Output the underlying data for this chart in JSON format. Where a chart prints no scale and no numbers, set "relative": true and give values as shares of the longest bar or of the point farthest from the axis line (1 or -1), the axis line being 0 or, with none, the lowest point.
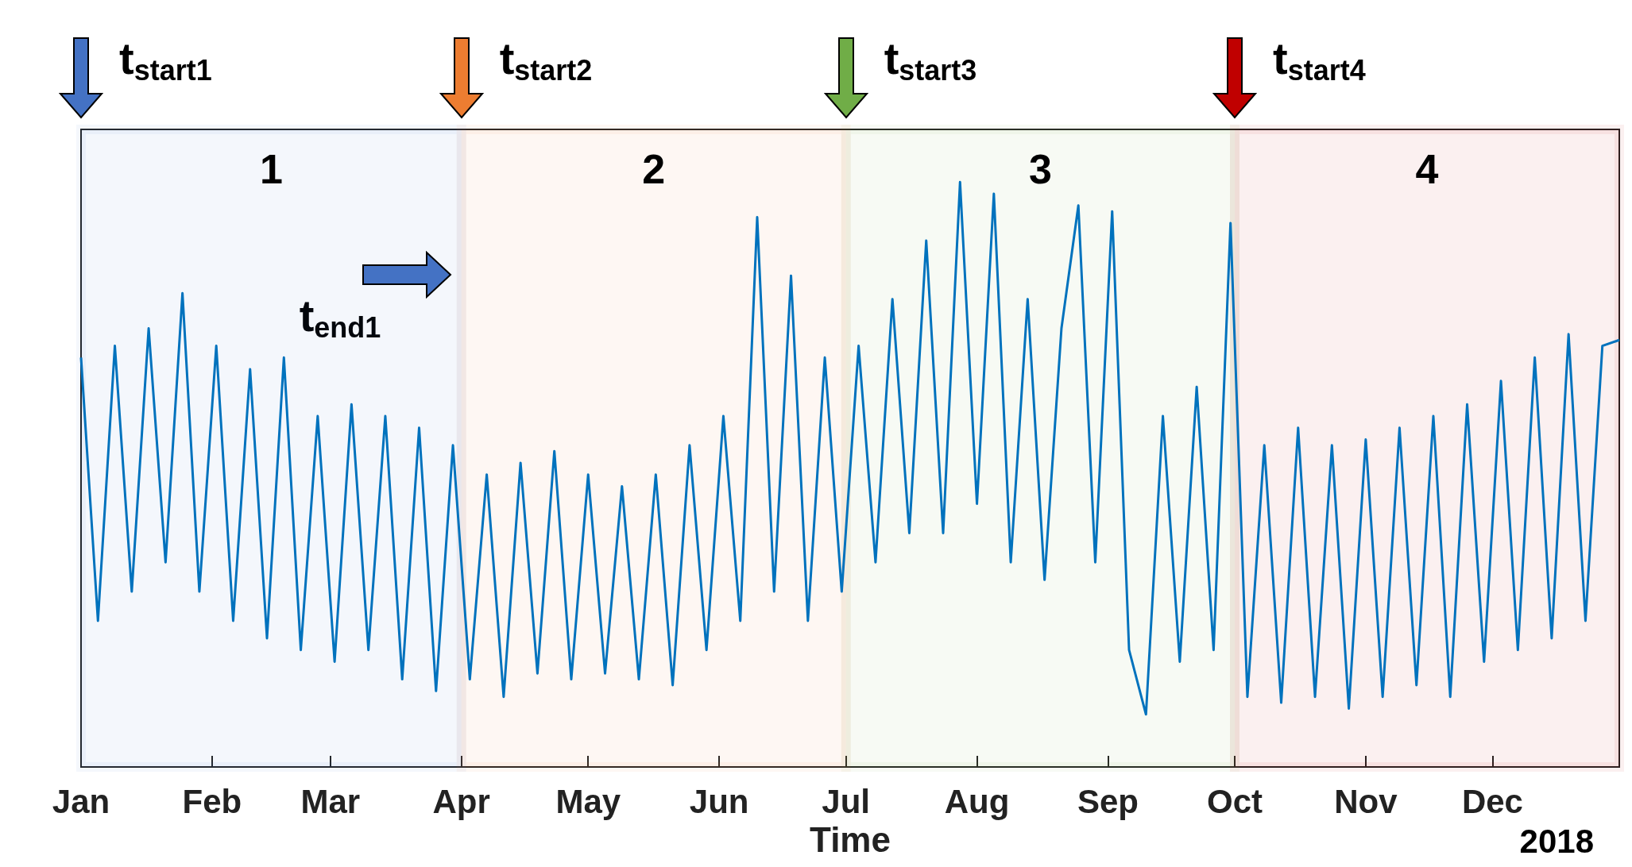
{
  "chart_data": {
    "type": "line",
    "relative": true,
    "xlabel": "Time",
    "grid": false,
    "marker": "none",
    "line_style": "solid",
    "xlim": [
      "2018-01-01",
      "2018-12-31"
    ],
    "xticks": [
      {
        "value": "2018-01-01",
        "label": "Jan"
      },
      {
        "value": "2018-02-01",
        "label": "Feb"
      },
      {
        "value": "2018-03-01",
        "label": "Mar"
      },
      {
        "value": "2018-04-01",
        "label": "Apr"
      },
      {
        "value": "2018-05-01",
        "label": "May"
      },
      {
        "value": "2018-06-01",
        "label": "Jun"
      },
      {
        "value": "2018-07-01",
        "label": "Jul"
      },
      {
        "value": "2018-08-01",
        "label": "Aug"
      },
      {
        "value": "2018-09-01",
        "label": "Sep"
      },
      {
        "value": "2018-10-01",
        "label": "Oct"
      },
      {
        "value": "2018-11-01",
        "label": "Nov"
      },
      {
        "value": "2018-12-01",
        "label": "Dec"
      }
    ],
    "x": [
      "2018-01-01",
      "2018-01-05",
      "2018-01-09",
      "2018-01-13",
      "2018-01-17",
      "2018-01-21",
      "2018-01-25",
      "2018-01-29",
      "2018-02-02",
      "2018-02-06",
      "2018-02-10",
      "2018-02-14",
      "2018-02-18",
      "2018-02-22",
      "2018-02-26",
      "2018-03-02",
      "2018-03-06",
      "2018-03-10",
      "2018-03-14",
      "2018-03-18",
      "2018-03-22",
      "2018-03-26",
      "2018-03-30",
      "2018-04-03",
      "2018-04-07",
      "2018-04-11",
      "2018-04-15",
      "2018-04-19",
      "2018-04-23",
      "2018-04-27",
      "2018-05-01",
      "2018-05-05",
      "2018-05-09",
      "2018-05-13",
      "2018-05-17",
      "2018-05-21",
      "2018-05-25",
      "2018-05-29",
      "2018-06-02",
      "2018-06-06",
      "2018-06-10",
      "2018-06-14",
      "2018-06-18",
      "2018-06-22",
      "2018-06-26",
      "2018-06-30",
      "2018-07-04",
      "2018-07-08",
      "2018-07-12",
      "2018-07-16",
      "2018-07-20",
      "2018-07-24",
      "2018-07-28",
      "2018-08-01",
      "2018-08-05",
      "2018-08-09",
      "2018-08-13",
      "2018-08-17",
      "2018-08-21",
      "2018-08-25",
      "2018-08-29",
      "2018-09-02",
      "2018-09-06",
      "2018-09-10",
      "2018-09-14",
      "2018-09-18",
      "2018-09-22",
      "2018-09-26",
      "2018-09-30",
      "2018-10-04",
      "2018-10-08",
      "2018-10-12",
      "2018-10-16",
      "2018-10-20",
      "2018-10-24",
      "2018-10-28",
      "2018-11-01",
      "2018-11-05",
      "2018-11-09",
      "2018-11-13",
      "2018-11-17",
      "2018-11-21",
      "2018-11-25",
      "2018-11-29",
      "2018-12-03",
      "2018-12-07",
      "2018-12-11",
      "2018-12-15",
      "2018-12-19",
      "2018-12-23",
      "2018-12-27",
      "2018-12-31"
    ],
    "series": [
      {
        "color": "#0072bd",
        "values": [
          0.7,
          0.25,
          0.72,
          0.3,
          0.75,
          0.35,
          0.81,
          0.3,
          0.72,
          0.25,
          0.68,
          0.22,
          0.7,
          0.2,
          0.6,
          0.18,
          0.62,
          0.2,
          0.6,
          0.15,
          0.58,
          0.13,
          0.55,
          0.15,
          0.5,
          0.12,
          0.52,
          0.16,
          0.54,
          0.15,
          0.5,
          0.16,
          0.48,
          0.15,
          0.5,
          0.14,
          0.55,
          0.2,
          0.6,
          0.25,
          0.94,
          0.3,
          0.84,
          0.25,
          0.7,
          0.3,
          0.72,
          0.35,
          0.8,
          0.4,
          0.9,
          0.4,
          1.0,
          0.45,
          0.98,
          0.35,
          0.8,
          0.32,
          0.75,
          0.96,
          0.35,
          0.95,
          0.2,
          0.09,
          0.6,
          0.18,
          0.65,
          0.2,
          0.93,
          0.12,
          0.55,
          0.11,
          0.58,
          0.12,
          0.55,
          0.1,
          0.56,
          0.12,
          0.58,
          0.14,
          0.6,
          0.12,
          0.62,
          0.18,
          0.66,
          0.2,
          0.7,
          0.22,
          0.74,
          0.25,
          0.72,
          0.73
        ]
      }
    ],
    "bands": [
      {
        "axis": "x",
        "from": "2018-01-01",
        "to": "2018-04-01",
        "label": "1",
        "color": "#4472c4"
      },
      {
        "axis": "x",
        "from": "2018-04-01",
        "to": "2018-07-01",
        "label": "2",
        "color": "#ed7d31"
      },
      {
        "axis": "x",
        "from": "2018-07-01",
        "to": "2018-10-01",
        "label": "3",
        "color": "#70ad47"
      },
      {
        "axis": "x",
        "from": "2018-10-01",
        "to": "2018-12-31",
        "label": "4",
        "color": "#c00000"
      }
    ],
    "annotations": [
      "t$_{start1}$",
      "t$_{start2}$",
      "t$_{start3}$",
      "t$_{start4}$",
      "t$_{end1}$",
      "2018"
    ]
  }
}
